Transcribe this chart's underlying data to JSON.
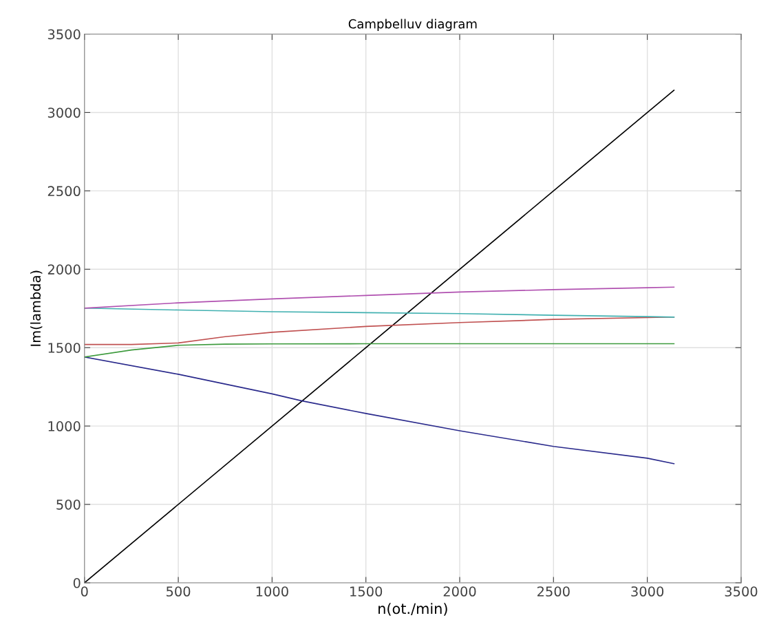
{
  "chart_data": {
    "type": "line",
    "title": "Campbelluv diagram",
    "xlabel": "n(ot./min)",
    "ylabel": "Im(lambda)",
    "xlim": [
      0,
      3500
    ],
    "ylim": [
      0,
      3500
    ],
    "xticks": [
      0,
      500,
      1000,
      1500,
      2000,
      2500,
      3000,
      3500
    ],
    "yticks": [
      0,
      500,
      1000,
      1500,
      2000,
      2500,
      3000,
      3500
    ],
    "grid": true,
    "legend": false,
    "marker": "none",
    "line_style": "solid",
    "series": [
      {
        "color": "#000000",
        "x": [
          0,
          3142
        ],
        "values": [
          0,
          3142
        ]
      },
      {
        "color": "#2a2a8c",
        "x": [
          0,
          500,
          1000,
          1160,
          1500,
          2000,
          2500,
          3000,
          3142
        ],
        "values": [
          1440,
          1330,
          1205,
          1160,
          1080,
          970,
          870,
          795,
          760
        ]
      },
      {
        "color": "#3c9a3c",
        "x": [
          0,
          250,
          500,
          750,
          1000,
          1500,
          2000,
          2500,
          3000,
          3142
        ],
        "values": [
          1440,
          1485,
          1515,
          1522,
          1524,
          1525,
          1525,
          1525,
          1525,
          1525
        ]
      },
      {
        "color": "#c05050",
        "x": [
          0,
          250,
          500,
          750,
          1000,
          1500,
          2000,
          2500,
          3000,
          3142
        ],
        "values": [
          1520,
          1520,
          1530,
          1570,
          1598,
          1635,
          1660,
          1680,
          1692,
          1695
        ]
      },
      {
        "color": "#40b0b0",
        "x": [
          0,
          500,
          1000,
          1500,
          2000,
          2500,
          3000,
          3142
        ],
        "values": [
          1752,
          1740,
          1729,
          1723,
          1717,
          1707,
          1698,
          1695
        ]
      },
      {
        "color": "#b050b0",
        "x": [
          0,
          500,
          1000,
          1500,
          2000,
          2500,
          3000,
          3142
        ],
        "values": [
          1752,
          1786,
          1811,
          1833,
          1855,
          1870,
          1882,
          1886
        ]
      }
    ]
  }
}
